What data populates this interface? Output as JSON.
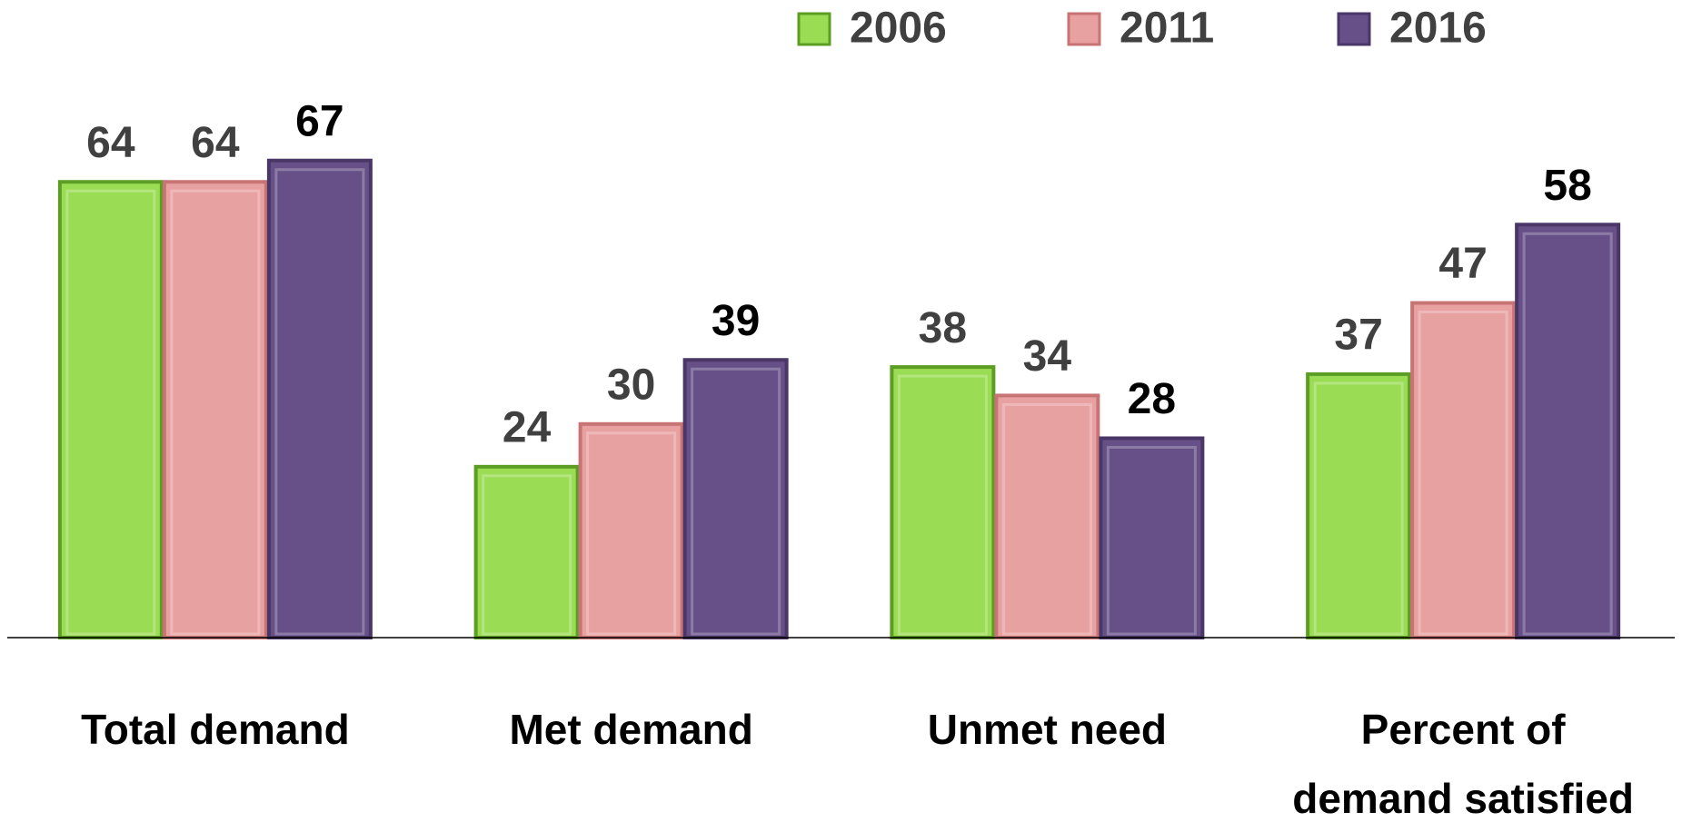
{
  "chart_data": {
    "type": "bar",
    "categories": [
      "Total demand",
      "Met demand",
      "Unmet need",
      "Percent of demand satisfied"
    ],
    "series": [
      {
        "name": "2006",
        "color": "#9bdc55",
        "border": "#5c9e24",
        "label_color": "#404040",
        "values": [
          64,
          24,
          38,
          37
        ]
      },
      {
        "name": "2011",
        "color": "#e8a1a1",
        "border": "#c97474",
        "label_color": "#404040",
        "values": [
          64,
          30,
          34,
          47
        ]
      },
      {
        "name": "2016",
        "color": "#665087",
        "border": "#4a3768",
        "label_color": "#000000",
        "values": [
          67,
          39,
          28,
          58
        ]
      }
    ],
    "ylim": [
      0,
      75
    ],
    "grid": false,
    "legend": "top"
  }
}
